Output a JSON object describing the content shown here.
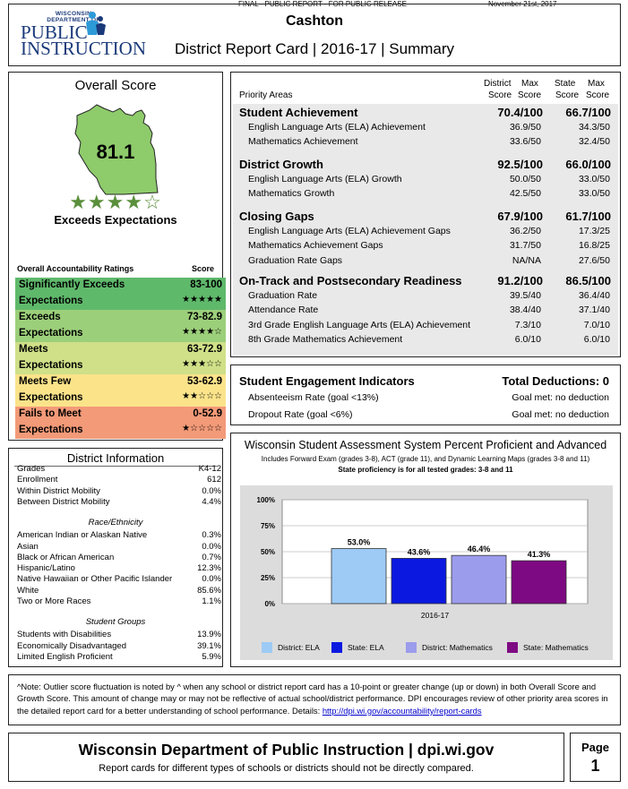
{
  "header": {
    "release": "FINAL - PUBLIC REPORT - FOR PUBLIC RELEASE",
    "date": "November 21st, 2017",
    "logo_small": "WISCONSIN DEPARTMENT OF",
    "logo_line1": "PUBLIC",
    "logo_line2": "INSTRUCTION",
    "district": "Cashton",
    "subtitle": "District Report Card | 2016-17 | Summary"
  },
  "overall": {
    "title": "Overall Score",
    "score": "81.1",
    "stars": "★★★★☆",
    "rating": "Exceeds Expectations",
    "ratings_head": "Overall Accountability Ratings",
    "score_head": "Score",
    "ratings": [
      {
        "name": "Significantly Exceeds",
        "sub": "Expectations",
        "range": "83-100",
        "stars": "★★★★★",
        "color": "#5fb96b"
      },
      {
        "name": "Exceeds",
        "sub": "Expectations",
        "range": "73-82.9",
        "stars": "★★★★☆",
        "color": "#9ccf7a"
      },
      {
        "name": "Meets",
        "sub": "Expectations",
        "range": "63-72.9",
        "stars": "★★★☆☆",
        "color": "#cfe088"
      },
      {
        "name": "Meets Few",
        "sub": "Expectations",
        "range": "53-62.9",
        "stars": "★★☆☆☆",
        "color": "#fbe38a"
      },
      {
        "name": "Fails to Meet",
        "sub": "Expectations",
        "range": "0-52.9",
        "stars": "★☆☆☆☆",
        "color": "#f39a78"
      }
    ]
  },
  "district_info": {
    "title": "District Information",
    "rows": [
      {
        "label": "Grades",
        "value": "K4-12"
      },
      {
        "label": "Enrollment",
        "value": "612"
      },
      {
        "label": "Within District Mobility",
        "value": "0.0%"
      },
      {
        "label": "Between District Mobility",
        "value": "4.4%"
      }
    ],
    "race_title": "Race/Ethnicity",
    "race": [
      {
        "label": "American Indian or Alaskan Native",
        "value": "0.3%"
      },
      {
        "label": "Asian",
        "value": "0.0%"
      },
      {
        "label": "Black or African American",
        "value": "0.7%"
      },
      {
        "label": "Hispanic/Latino",
        "value": "12.3%"
      },
      {
        "label": "Native Hawaiian or Other Pacific Islander",
        "value": "0.0%"
      },
      {
        "label": "White",
        "value": "85.6%"
      },
      {
        "label": "Two or More Races",
        "value": "1.1%"
      }
    ],
    "groups_title": "Student Groups",
    "groups": [
      {
        "label": "Students with Disabilities",
        "value": "13.9%"
      },
      {
        "label": "Economically Disadvantaged",
        "value": "39.1%"
      },
      {
        "label": "Limited English Proficient",
        "value": "5.9%"
      }
    ]
  },
  "priority": {
    "head_left": "Priority Areas",
    "head_district": "District",
    "head_max": "Max",
    "head_state": "State",
    "head_score": "Score",
    "sections": [
      {
        "name": "Student Achievement",
        "district": "70.4/100",
        "state": "66.7/100",
        "items": [
          {
            "name": "English Language Arts (ELA) Achievement",
            "district": "36.9/50",
            "state": "34.3/50"
          },
          {
            "name": "Mathematics Achievement",
            "district": "33.6/50",
            "state": "32.4/50"
          }
        ]
      },
      {
        "name": "District Growth",
        "district": "92.5/100",
        "state": "66.0/100",
        "items": [
          {
            "name": "English Language Arts (ELA) Growth",
            "district": "50.0/50",
            "state": "33.0/50"
          },
          {
            "name": "Mathematics Growth",
            "district": "42.5/50",
            "state": "33.0/50"
          }
        ]
      },
      {
        "name": "Closing Gaps",
        "district": "67.9/100",
        "state": "61.7/100",
        "items": [
          {
            "name": "English Language Arts (ELA) Achievement Gaps",
            "district": "36.2/50",
            "state": "17.3/25"
          },
          {
            "name": "Mathematics Achievement Gaps",
            "district": "31.7/50",
            "state": "16.8/25"
          },
          {
            "name": "Graduation Rate Gaps",
            "district": "NA/NA",
            "state": "27.6/50"
          }
        ]
      },
      {
        "name": "On-Track and Postsecondary Readiness",
        "district": "91.2/100",
        "state": "86.5/100",
        "items": [
          {
            "name": "Graduation Rate",
            "district": "39.5/40",
            "state": "36.4/40"
          },
          {
            "name": "Attendance Rate",
            "district": "38.4/40",
            "state": "37.1/40"
          },
          {
            "name": "3rd Grade English Language Arts (ELA) Achievement",
            "district": "7.3/10",
            "state": "7.0/10"
          },
          {
            "name": "8th Grade Mathematics Achievement",
            "district": "6.0/10",
            "state": "6.0/10"
          }
        ]
      }
    ]
  },
  "engagement": {
    "title": "Student Engagement Indicators",
    "deductions": "Total Deductions: 0",
    "items": [
      {
        "name": "Absenteeism Rate (goal <13%)",
        "status": "Goal met: no deduction"
      },
      {
        "name": "Dropout Rate (goal <6%)",
        "status": "Goal met: no deduction"
      }
    ]
  },
  "chart_data": {
    "type": "bar",
    "title": "Wisconsin Student Assessment System Percent Proficient and Advanced",
    "subtitle": "Includes Forward Exam (grades 3-8), ACT (grade 11), and Dynamic Learning Maps (grades 3-8 and 11)",
    "subtitle2": "State proficiency is for all tested grades: 3-8 and 11",
    "categories": [
      "2016-17"
    ],
    "series": [
      {
        "name": "District: ELA",
        "values": [
          53.0
        ],
        "label": "53.0%",
        "color": "#9dcbf5"
      },
      {
        "name": "State: ELA",
        "values": [
          43.6
        ],
        "label": "43.6%",
        "color": "#0b19e0"
      },
      {
        "name": "District: Mathematics",
        "values": [
          46.4
        ],
        "label": "46.4%",
        "color": "#9c9cec"
      },
      {
        "name": "State: Mathematics",
        "values": [
          41.3
        ],
        "label": "41.3%",
        "color": "#7d0a82"
      }
    ],
    "yticks": [
      "0%",
      "25%",
      "50%",
      "75%",
      "100%"
    ],
    "ylim": [
      0,
      100
    ]
  },
  "note": {
    "text": "^Note:  Outlier score fluctuation is noted by ^ when any school or district report card has a 10-point or greater change (up or down) in both Overall Score and Growth Score. This amount of change may or may not be reflective of actual school/district performance. DPI encourages review of other priority area scores in the detailed report card for a better understanding of school performance. Details: ",
    "link": "http://dpi.wi.gov/accountability/report-cards"
  },
  "footer": {
    "title": "Wisconsin Department of Public Instruction | dpi.wi.gov",
    "subtitle": "Report cards for different types of schools or districts should not be directly compared.",
    "page_label": "Page",
    "page_num": "1"
  }
}
